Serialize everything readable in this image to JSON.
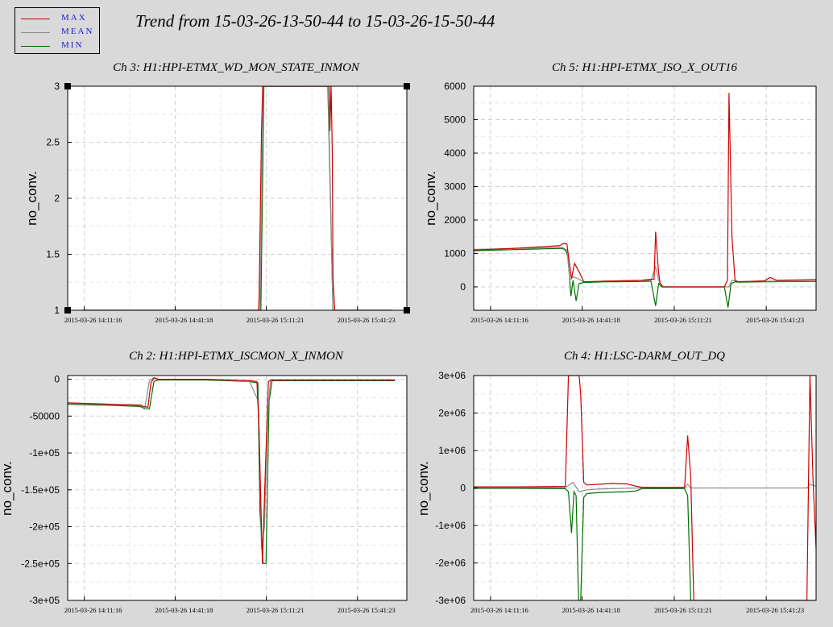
{
  "title": "Trend from 15-03-26-13-50-44 to 15-03-26-15-50-44",
  "legend": [
    {
      "label": "MAX",
      "color": "#cc0000"
    },
    {
      "label": "MEAN",
      "color": "#8c8c8c"
    },
    {
      "label": "MIN",
      "color": "#007000"
    }
  ],
  "chart_data": [
    {
      "type": "line",
      "title": "Ch 3: H1:HPI-ETMX_WD_MON_STATE_INMON",
      "ylabel": "no_conv.",
      "xlabel": "",
      "x_tick_labels": [
        "2015-03-26 14:11:16",
        "2015-03-26 14:41:18",
        "2015-03-26 15:11:21",
        "2015-03-26 15:41:23"
      ],
      "x_ticks_minutes": [
        20.5,
        50.5,
        80.6,
        110.7
      ],
      "xlim_minutes": [
        15,
        127
      ],
      "ylim": [
        1,
        3
      ],
      "y_ticks": [
        1,
        1.5,
        2,
        2.5,
        3
      ],
      "y_tick_labels": [
        "1",
        "1.5",
        "2",
        "2.5",
        "3"
      ],
      "grid": true,
      "selected": true,
      "series": [
        {
          "name": "MAX",
          "color": "#cc0000",
          "x": [
            19.8,
            78.0,
            78.2,
            79.0,
            79.4,
            79.6,
            80.5,
            101.4,
            101.6,
            102.0,
            102.4,
            102.6,
            103.2,
            122.0
          ],
          "y": [
            1,
            1,
            1.1,
            2.6,
            3,
            3,
            3,
            3,
            2.6,
            3,
            2.4,
            1.3,
            1,
            1
          ]
        },
        {
          "name": "MEAN",
          "color": "#8c8c8c",
          "x": [
            19.8,
            78.5,
            79.6,
            101.0,
            102.6,
            122.0
          ],
          "y": [
            1,
            1,
            3,
            3,
            1,
            1
          ]
        },
        {
          "name": "MIN",
          "color": "#007000",
          "x": [
            19.8,
            78.8,
            79.8,
            100.9,
            102.6,
            122.0
          ],
          "y": [
            1,
            1,
            3,
            3,
            1,
            1
          ]
        }
      ]
    },
    {
      "type": "line",
      "title": "Ch 5: H1:HPI-ETMX_ISO_X_OUT16",
      "ylabel": "no_conv.",
      "xlabel": "",
      "x_tick_labels": [
        "2015-03-26 14:11:16",
        "2015-03-26 14:41:18",
        "2015-03-26 15:11:21",
        "2015-03-26 15:41:23"
      ],
      "x_ticks_minutes": [
        20.5,
        50.5,
        80.6,
        110.7
      ],
      "xlim_minutes": [
        15,
        127
      ],
      "ylim": [
        -700,
        6000
      ],
      "y_ticks": [
        0,
        1000,
        2000,
        3000,
        4000,
        5000,
        6000
      ],
      "y_tick_labels": [
        "0",
        "1000",
        "2000",
        "3000",
        "4000",
        "5000",
        "6000"
      ],
      "grid": true,
      "series": [
        {
          "name": "MAX",
          "color": "#cc0000",
          "x": [
            15,
            30,
            43,
            44.5,
            45.5,
            47,
            48,
            49.5,
            51,
            58,
            70,
            72,
            74,
            74.5,
            75.5,
            76,
            77,
            87,
            97,
            98,
            98.5,
            99.5,
            100.5,
            101.5,
            110,
            112,
            114,
            127
          ],
          "y": [
            1100,
            1160,
            1230,
            1300,
            1280,
            250,
            700,
            450,
            150,
            170,
            200,
            220,
            230,
            1650,
            400,
            100,
            0,
            0,
            0,
            200,
            5800,
            1500,
            200,
            150,
            180,
            280,
            200,
            220
          ]
        },
        {
          "name": "MEAN",
          "color": "#8c8c8c",
          "x": [
            15,
            30,
            44,
            45.5,
            46.5,
            47.5,
            49,
            51,
            58,
            70,
            73,
            74.5,
            75.5,
            76,
            77,
            87,
            97,
            98.5,
            99.5,
            100.5,
            101.5,
            110,
            127
          ],
          "y": [
            1120,
            1150,
            1180,
            1100,
            200,
            300,
            250,
            150,
            170,
            190,
            200,
            600,
            200,
            100,
            0,
            0,
            0,
            0,
            200,
            180,
            160,
            170,
            180
          ]
        },
        {
          "name": "MIN",
          "color": "#007000",
          "x": [
            15,
            30,
            44,
            45,
            45.8,
            46.8,
            47.5,
            48.5,
            49.5,
            51,
            58,
            70,
            73,
            74.5,
            75.5,
            76.5,
            87,
            97,
            98.2,
            99.2,
            100.5,
            101.5,
            110,
            127
          ],
          "y": [
            1080,
            1120,
            1150,
            1100,
            900,
            -280,
            200,
            -420,
            100,
            130,
            150,
            160,
            170,
            -570,
            100,
            0,
            0,
            0,
            -620,
            100,
            150,
            140,
            150,
            160
          ]
        }
      ]
    },
    {
      "type": "line",
      "title": "Ch 2: H1:HPI-ETMX_ISCMON_X_INMON",
      "ylabel": "no_conv.",
      "xlabel": "",
      "x_tick_labels": [
        "2015-03-26 14:11:16",
        "2015-03-26 14:41:18",
        "2015-03-26 15:11:21",
        "2015-03-26 15:41:23"
      ],
      "x_ticks_minutes": [
        20.5,
        50.5,
        80.6,
        110.7
      ],
      "xlim_minutes": [
        15,
        127
      ],
      "ylim": [
        -300000,
        5000
      ],
      "y_ticks": [
        0,
        -50000,
        -100000,
        -150000,
        -200000,
        -250000,
        -300000
      ],
      "y_tick_labels": [
        "0",
        "-50000",
        "-1e+05",
        "-1.5e+05",
        "-2e+05",
        "-2.5e+05",
        "-3e+05"
      ],
      "grid": true,
      "series": [
        {
          "name": "MAX",
          "color": "#cc0000",
          "x": [
            15,
            30,
            39,
            40,
            41.5,
            42.5,
            43.5,
            45,
            60,
            75,
            77.5,
            78.2,
            79.3,
            80.3,
            81.3,
            82.3,
            90,
            110,
            123
          ],
          "y": [
            -32000,
            -34000,
            -35000,
            -37000,
            -38000,
            -5000,
            2000,
            0,
            0,
            -2000,
            -3000,
            -70000,
            -250000,
            -120000,
            -3000,
            -1000,
            -1000,
            -1000,
            -1000
          ]
        },
        {
          "name": "MEAN",
          "color": "#8c8c8c",
          "x": [
            15,
            30,
            39,
            40.5,
            42,
            43,
            45,
            60,
            75,
            78,
            79,
            80,
            81,
            82,
            90,
            123
          ],
          "y": [
            -33000,
            -34500,
            -35500,
            -38000,
            -2000,
            1000,
            0,
            0,
            -2500,
            -30000,
            -230000,
            -200000,
            -50000,
            -1000,
            -1000,
            -1000
          ]
        },
        {
          "name": "MIN",
          "color": "#007000",
          "x": [
            15,
            30,
            39,
            40.5,
            42,
            43.5,
            45,
            60,
            75,
            77.8,
            78.5,
            79.5,
            80.5,
            81.5,
            82.5,
            90,
            123
          ],
          "y": [
            -34000,
            -35500,
            -37000,
            -40000,
            -40000,
            -3000,
            -1000,
            -1000,
            -3000,
            -5000,
            -180000,
            -250000,
            -250000,
            -30000,
            -2000,
            -2000,
            -2000
          ]
        }
      ]
    },
    {
      "type": "line",
      "title": "Ch 4: H1:LSC-DARM_OUT_DQ",
      "ylabel": "no_conv.",
      "xlabel": "",
      "x_tick_labels": [
        "2015-03-26 14:11:16",
        "2015-03-26 14:41:18",
        "2015-03-26 15:11:21",
        "2015-03-26 15:41:23"
      ],
      "x_ticks_minutes": [
        20.5,
        50.5,
        80.6,
        110.7
      ],
      "xlim_minutes": [
        15,
        127
      ],
      "ylim": [
        -3000000,
        3000000
      ],
      "y_ticks": [
        3000000,
        2000000,
        1000000,
        0,
        -1000000,
        -2000000,
        -3000000
      ],
      "y_tick_labels": [
        "3e+06",
        "2e+06",
        "1e+06",
        "0",
        "-1e+06",
        "-2e+06",
        "-3e+06"
      ],
      "grid": true,
      "series": [
        {
          "name": "MAX",
          "color": "#cc0000",
          "x": [
            15,
            30,
            45,
            46,
            47,
            49.5,
            50,
            51,
            52,
            56,
            60,
            65,
            68,
            70,
            72,
            84,
            85,
            86,
            87,
            88,
            100,
            124,
            125,
            126,
            127,
            128,
            129
          ],
          "y": [
            30000,
            30000,
            40000,
            3000000,
            3000000,
            3000000,
            2500000,
            150000,
            80000,
            100000,
            120000,
            110000,
            50000,
            20000,
            20000,
            20000,
            1400000,
            300000,
            -3000000,
            -3000000,
            -3000000,
            -3000000,
            3000000,
            200000,
            -1600000,
            -3000000,
            0
          ]
        },
        {
          "name": "MEAN",
          "color": "#8c8c8c",
          "x": [
            15,
            30,
            45,
            47.5,
            49.5,
            52,
            56,
            60,
            68,
            72,
            84,
            85,
            86,
            124,
            125,
            129,
            132
          ],
          "y": [
            10000,
            10000,
            10000,
            150000,
            -100000,
            -50000,
            -30000,
            -20000,
            0,
            0,
            0,
            100000,
            0,
            0,
            100000,
            0,
            0
          ]
        },
        {
          "name": "MIN",
          "color": "#007000",
          "x": [
            15,
            30,
            45,
            46,
            47,
            47.8,
            48.5,
            49.3,
            50,
            51,
            52,
            56,
            60,
            65,
            68,
            70,
            72,
            84,
            85,
            86,
            87,
            88,
            100,
            124,
            125,
            126,
            127,
            128,
            129,
            130,
            132
          ],
          "y": [
            -10000,
            -10000,
            -20000,
            -100000,
            -1200000,
            -100000,
            -200000,
            -3000000,
            -3000000,
            -250000,
            -150000,
            -120000,
            -110000,
            -100000,
            -80000,
            -20000,
            -20000,
            -20000,
            -200000,
            -3000000,
            -3000000,
            -3000000,
            -3000000,
            -3000000,
            -3000000,
            -3000000,
            -3000000,
            -3000000,
            -3000000,
            0,
            0
          ]
        }
      ]
    }
  ]
}
